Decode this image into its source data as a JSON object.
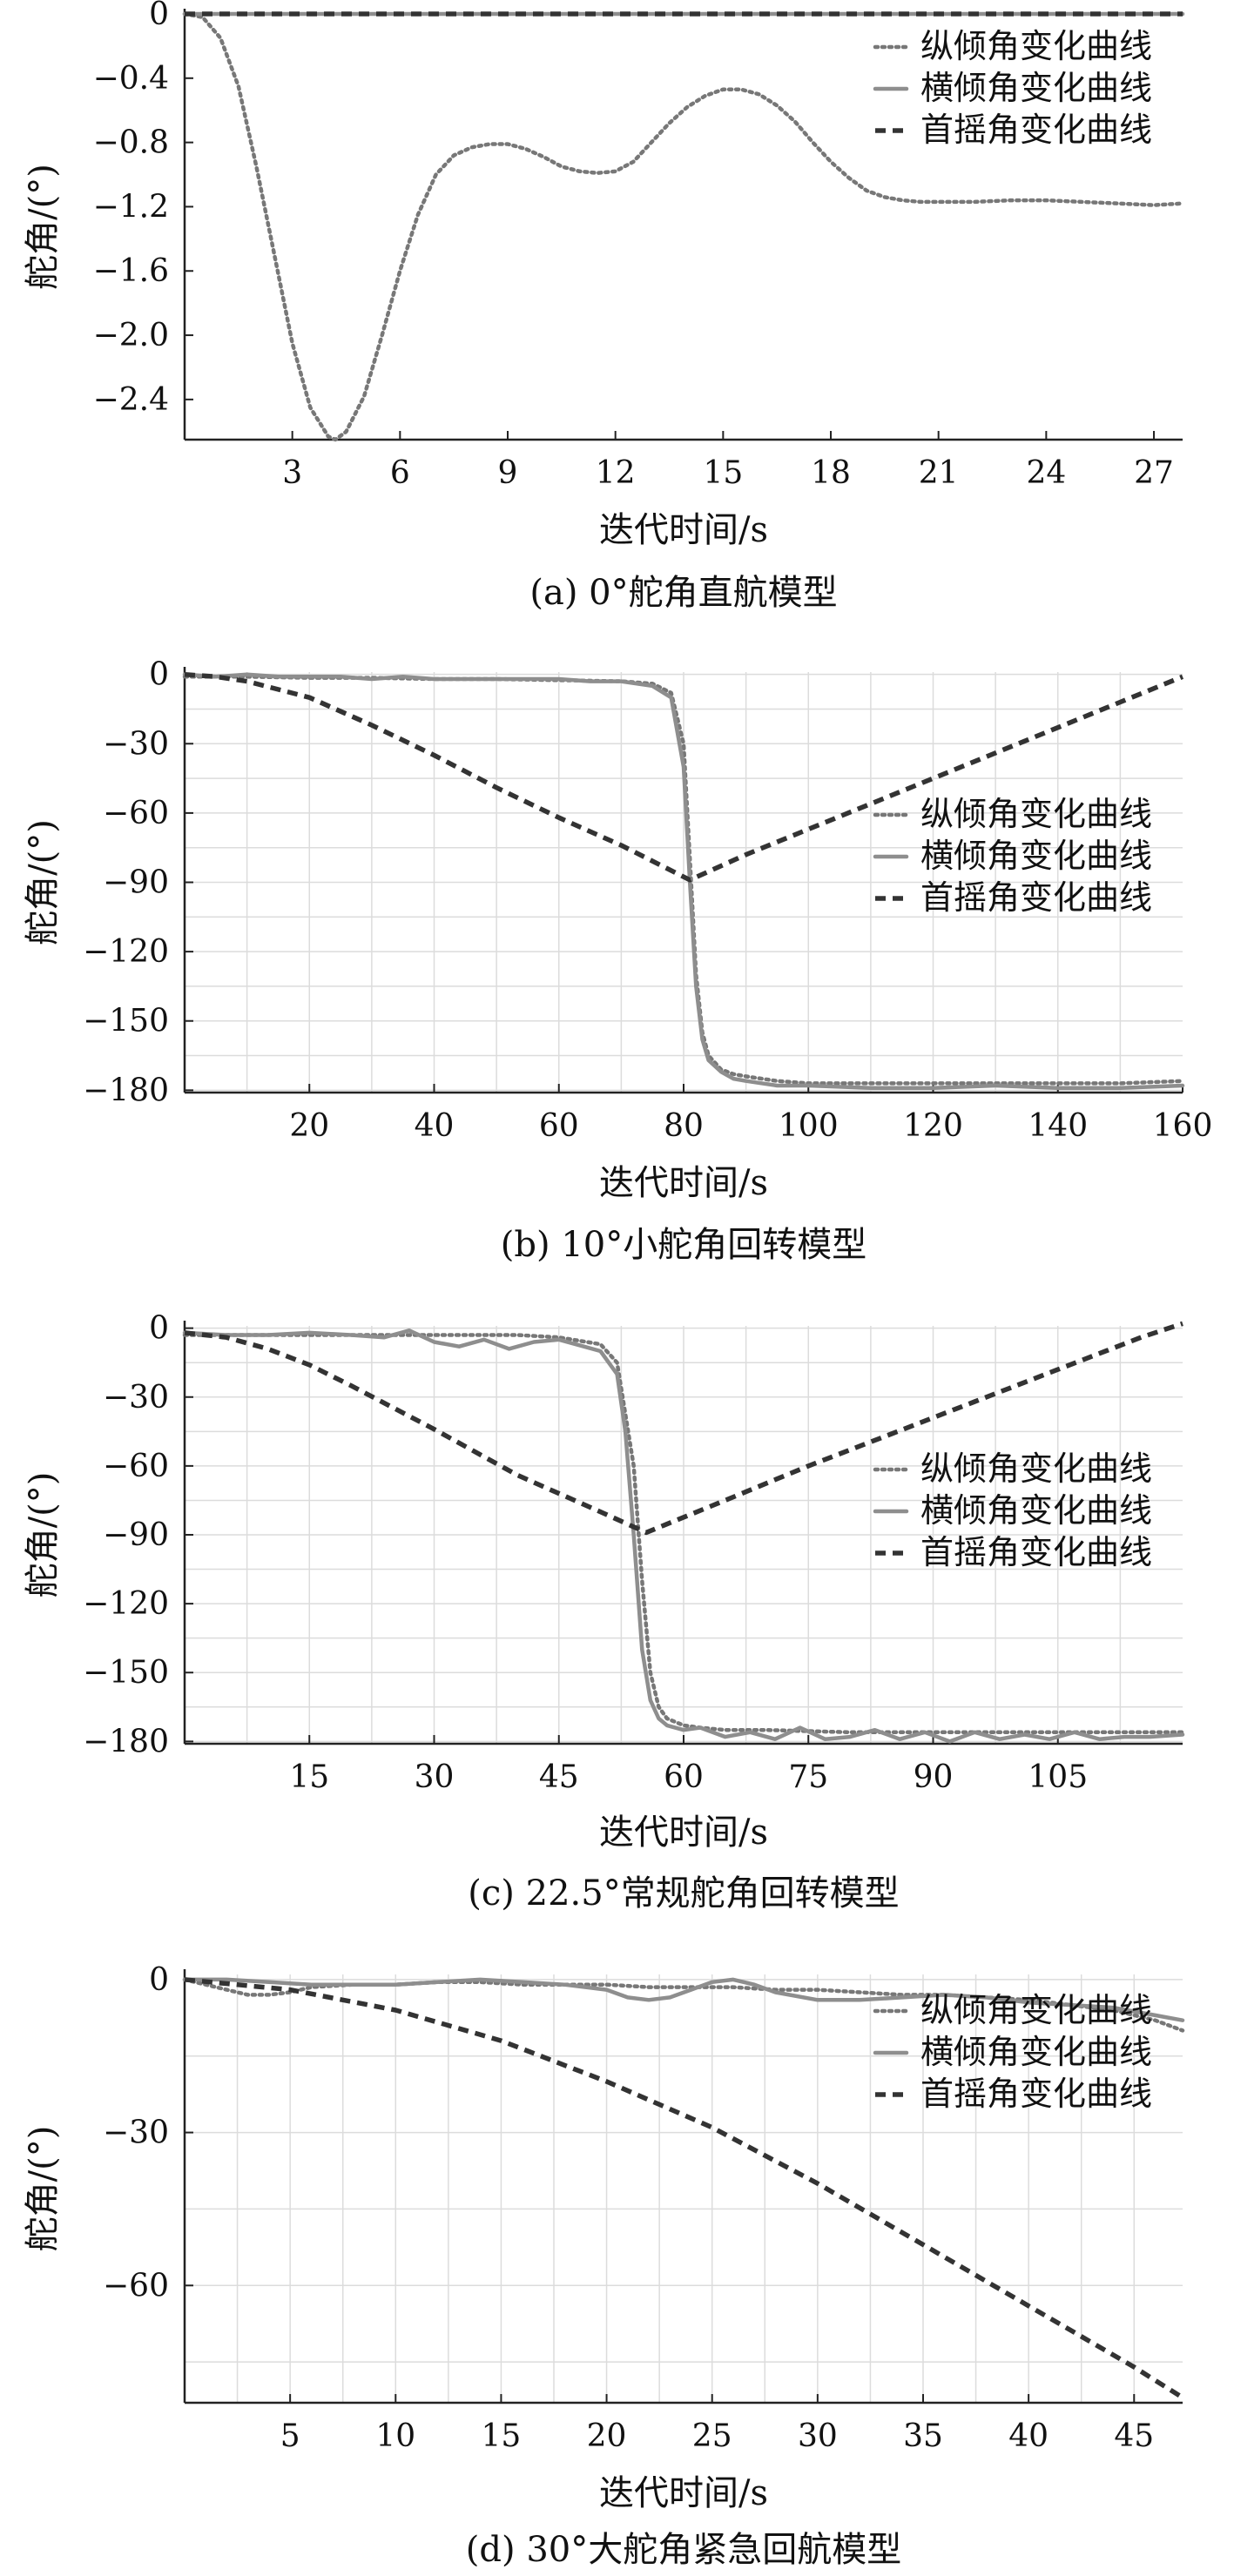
{
  "colors": {
    "pitch": "#777777",
    "roll": "#8e8e8e",
    "yaw": "#333333",
    "grid": "#dcdcdc",
    "axis": "#222222"
  },
  "chart_data": [
    {
      "type": "line",
      "caption": "(a) 0°舵角直航模型",
      "xlabel": "迭代时间/s",
      "ylabel": "舵角/(°)",
      "xlim": [
        0,
        27.8
      ],
      "ylim": [
        -2.65,
        0
      ],
      "xticks": [
        3,
        6,
        9,
        12,
        15,
        18,
        21,
        24,
        27
      ],
      "xtick_labels": [
        "3",
        "6",
        "9",
        "12",
        "15",
        "18",
        "21",
        "24",
        "27"
      ],
      "yticks": [
        0,
        -0.4,
        -0.8,
        -1.2,
        -1.6,
        -2.0,
        -2.4
      ],
      "ytick_labels": [
        "0",
        "−0.4",
        "−0.8",
        "−1.2",
        "−1.6",
        "−2.0",
        "−2.4"
      ],
      "grid": false,
      "legend_position": "top-right",
      "series": [
        {
          "name": "纵倾角变化曲线",
          "style": "pitch",
          "x": [
            0,
            0.5,
            1,
            1.5,
            2,
            2.5,
            3,
            3.5,
            4,
            4.2,
            4.5,
            5,
            5.5,
            6,
            6.5,
            7,
            7.5,
            8,
            8.5,
            9,
            9.5,
            10,
            10.5,
            11,
            11.5,
            12,
            12.5,
            13,
            13.5,
            14,
            14.5,
            15,
            15.5,
            16,
            16.5,
            17,
            17.5,
            18,
            18.5,
            19,
            19.5,
            20,
            20.5,
            21,
            22,
            23,
            24,
            25,
            26,
            27,
            27.8
          ],
          "y": [
            0,
            -0.02,
            -0.15,
            -0.45,
            -0.95,
            -1.5,
            -2.05,
            -2.45,
            -2.63,
            -2.65,
            -2.6,
            -2.38,
            -2.0,
            -1.6,
            -1.25,
            -1.0,
            -0.88,
            -0.83,
            -0.81,
            -0.81,
            -0.84,
            -0.89,
            -0.95,
            -0.98,
            -0.99,
            -0.98,
            -0.92,
            -0.8,
            -0.68,
            -0.58,
            -0.51,
            -0.47,
            -0.47,
            -0.5,
            -0.57,
            -0.67,
            -0.8,
            -0.92,
            -1.02,
            -1.1,
            -1.14,
            -1.16,
            -1.17,
            -1.17,
            -1.17,
            -1.16,
            -1.16,
            -1.17,
            -1.18,
            -1.19,
            -1.18
          ]
        },
        {
          "name": "横倾角变化曲线",
          "style": "roll",
          "x": [
            0,
            27.8
          ],
          "y": [
            0,
            0
          ]
        },
        {
          "name": "首摇角变化曲线",
          "style": "yaw",
          "x": [
            0,
            27.8
          ],
          "y": [
            0,
            0
          ]
        }
      ]
    },
    {
      "type": "line",
      "caption": "(b) 10°小舵角回转模型",
      "xlabel": "迭代时间/s",
      "ylabel": "舵角/(°)",
      "xlim": [
        0,
        160
      ],
      "ylim": [
        -181,
        1
      ],
      "xticks": [
        20,
        40,
        60,
        80,
        100,
        120,
        140,
        160
      ],
      "xtick_labels": [
        "20",
        "40",
        "60",
        "80",
        "100",
        "120",
        "140",
        "160"
      ],
      "yticks": [
        0,
        -30,
        -60,
        -90,
        -120,
        -150,
        -180
      ],
      "ytick_labels": [
        "0",
        "−30",
        "−60",
        "−90",
        "−120",
        "−150",
        "−180"
      ],
      "grid": true,
      "legend_position": "center-right",
      "series": [
        {
          "name": "纵倾角变化曲线",
          "style": "pitch",
          "x": [
            0,
            10,
            20,
            30,
            40,
            50,
            60,
            70,
            75,
            78,
            80,
            81,
            82,
            83,
            84,
            86,
            88,
            90,
            95,
            100,
            110,
            120,
            130,
            140,
            150,
            160
          ],
          "y": [
            -1,
            -1,
            -1.5,
            -1.5,
            -2,
            -2,
            -2.5,
            -3,
            -4,
            -8,
            -30,
            -80,
            -130,
            -155,
            -165,
            -171,
            -173,
            -174,
            -176,
            -177,
            -177,
            -177,
            -177,
            -177,
            -177,
            -176
          ]
        },
        {
          "name": "横倾角变化曲线",
          "style": "roll",
          "x": [
            0,
            5,
            10,
            15,
            20,
            25,
            30,
            35,
            40,
            45,
            50,
            55,
            60,
            65,
            70,
            75,
            78,
            80,
            81,
            82,
            83,
            84,
            86,
            88,
            90,
            95,
            100,
            110,
            120,
            130,
            140,
            150,
            160
          ],
          "y": [
            0,
            -1,
            0,
            -1,
            -1,
            -1,
            -2,
            -1,
            -2,
            -2,
            -2,
            -2,
            -2,
            -3,
            -3,
            -5,
            -10,
            -40,
            -90,
            -135,
            -158,
            -167,
            -172,
            -175,
            -176,
            -178,
            -178,
            -179,
            -179,
            -178,
            -179,
            -179,
            -178
          ]
        },
        {
          "name": "首摇角变化曲线",
          "style": "yaw",
          "x": [
            0,
            5,
            10,
            20,
            30,
            40,
            50,
            60,
            70,
            81,
            90,
            100,
            110,
            120,
            130,
            140,
            150,
            160
          ],
          "y": [
            0,
            -1,
            -3,
            -10,
            -22,
            -35,
            -49,
            -62,
            -74,
            -89,
            -78,
            -67,
            -56,
            -45,
            -34,
            -23,
            -12,
            -1
          ]
        }
      ]
    },
    {
      "type": "line",
      "caption": "(c) 22.5°常规舵角回转模型",
      "xlabel": "迭代时间/s",
      "ylabel": "舵角/(°)",
      "xlim": [
        0,
        120
      ],
      "ylim": [
        -181,
        1
      ],
      "xticks": [
        15,
        30,
        45,
        60,
        75,
        90,
        105
      ],
      "xtick_labels": [
        "15",
        "30",
        "45",
        "60",
        "75",
        "90",
        "105"
      ],
      "yticks": [
        0,
        -30,
        -60,
        -90,
        -120,
        -150,
        -180
      ],
      "ytick_labels": [
        "0",
        "−30",
        "−60",
        "−90",
        "−120",
        "−150",
        "−180"
      ],
      "grid": true,
      "legend_position": "center-right",
      "series": [
        {
          "name": "纵倾角变化曲线",
          "style": "pitch",
          "x": [
            0,
            10,
            20,
            30,
            40,
            45,
            50,
            52,
            54,
            55,
            56,
            57,
            58,
            60,
            62,
            65,
            70,
            80,
            90,
            100,
            110,
            120
          ],
          "y": [
            -3,
            -3,
            -3,
            -3,
            -3,
            -4,
            -7,
            -15,
            -60,
            -110,
            -150,
            -165,
            -170,
            -173,
            -174,
            -175,
            -175,
            -176,
            -176,
            -176,
            -176,
            -176
          ]
        },
        {
          "name": "横倾角变化曲线",
          "style": "roll",
          "x": [
            0,
            5,
            10,
            15,
            20,
            24,
            27,
            30,
            33,
            36,
            39,
            42,
            45,
            48,
            50,
            52,
            53,
            54,
            55,
            56,
            57,
            58,
            60,
            62,
            65,
            68,
            71,
            74,
            77,
            80,
            83,
            86,
            89,
            92,
            95,
            98,
            101,
            104,
            107,
            110,
            113,
            116,
            120
          ],
          "y": [
            -2,
            -3,
            -3,
            -2,
            -3,
            -4,
            -1,
            -6,
            -8,
            -5,
            -9,
            -6,
            -5,
            -8,
            -10,
            -20,
            -45,
            -90,
            -140,
            -162,
            -170,
            -173,
            -175,
            -174,
            -178,
            -176,
            -179,
            -174,
            -179,
            -178,
            -175,
            -179,
            -176,
            -180,
            -176,
            -179,
            -177,
            -179,
            -176,
            -179,
            -178,
            -178,
            -177
          ]
        },
        {
          "name": "首摇角变化曲线",
          "style": "yaw",
          "x": [
            0,
            5,
            10,
            15,
            20,
            30,
            40,
            50,
            55.5,
            65,
            75,
            85,
            95,
            105,
            115,
            120
          ],
          "y": [
            -2,
            -4,
            -9,
            -16,
            -25,
            -44,
            -64,
            -80,
            -89,
            -75,
            -60,
            -46,
            -32,
            -18,
            -4,
            2
          ]
        }
      ]
    },
    {
      "type": "line",
      "caption": "(d) 30°大舵角紧急回航模型",
      "xlabel": "迭代时间/s",
      "ylabel": "舵角/(°)",
      "xlim": [
        0,
        47.3
      ],
      "ylim": [
        -83,
        1
      ],
      "xticks": [
        5,
        10,
        15,
        20,
        25,
        30,
        35,
        40,
        45
      ],
      "xtick_labels": [
        "5",
        "10",
        "15",
        "20",
        "25",
        "30",
        "35",
        "40",
        "45"
      ],
      "yticks": [
        0,
        -30,
        -60
      ],
      "ytick_labels": [
        "0",
        "−30",
        "−60"
      ],
      "grid": true,
      "legend_position": "top-right",
      "series": [
        {
          "name": "纵倾角变化曲线",
          "style": "pitch",
          "x": [
            0,
            1,
            2,
            3,
            4,
            5,
            6,
            8,
            10,
            12,
            14,
            16,
            18,
            20,
            22,
            24,
            26,
            28,
            30,
            32,
            34,
            36,
            38,
            40,
            42,
            44,
            46,
            47.3
          ],
          "y": [
            0,
            -1,
            -2,
            -3,
            -3,
            -2.5,
            -1.5,
            -1,
            -1,
            -0.5,
            -0.5,
            -1,
            -1,
            -1,
            -1.5,
            -1.5,
            -1.5,
            -2,
            -2,
            -2.5,
            -3,
            -3,
            -3.5,
            -4,
            -5,
            -6,
            -8,
            -10
          ]
        },
        {
          "name": "横倾角变化曲线",
          "style": "roll",
          "x": [
            0,
            2,
            4,
            6,
            8,
            10,
            12,
            14,
            16,
            18,
            20,
            21,
            22,
            23,
            24,
            25,
            26,
            27,
            28,
            30,
            32,
            34,
            36,
            38,
            40,
            42,
            44,
            46,
            47.3
          ],
          "y": [
            0,
            0,
            -0.5,
            -1,
            -1,
            -1,
            -0.5,
            0,
            -0.5,
            -1,
            -2,
            -3.5,
            -4,
            -3.5,
            -2,
            -0.5,
            0,
            -1,
            -2.5,
            -4,
            -4,
            -3.5,
            -3,
            -3.5,
            -4.5,
            -5,
            -5.5,
            -7,
            -8
          ]
        },
        {
          "name": "首摇角变化曲线",
          "style": "yaw",
          "x": [
            0,
            5,
            10,
            15,
            20,
            25,
            30,
            35,
            40,
            45,
            47.3
          ],
          "y": [
            0,
            -2,
            -6,
            -12,
            -20,
            -29,
            -40,
            -52,
            -64,
            -76,
            -82
          ]
        }
      ]
    }
  ]
}
